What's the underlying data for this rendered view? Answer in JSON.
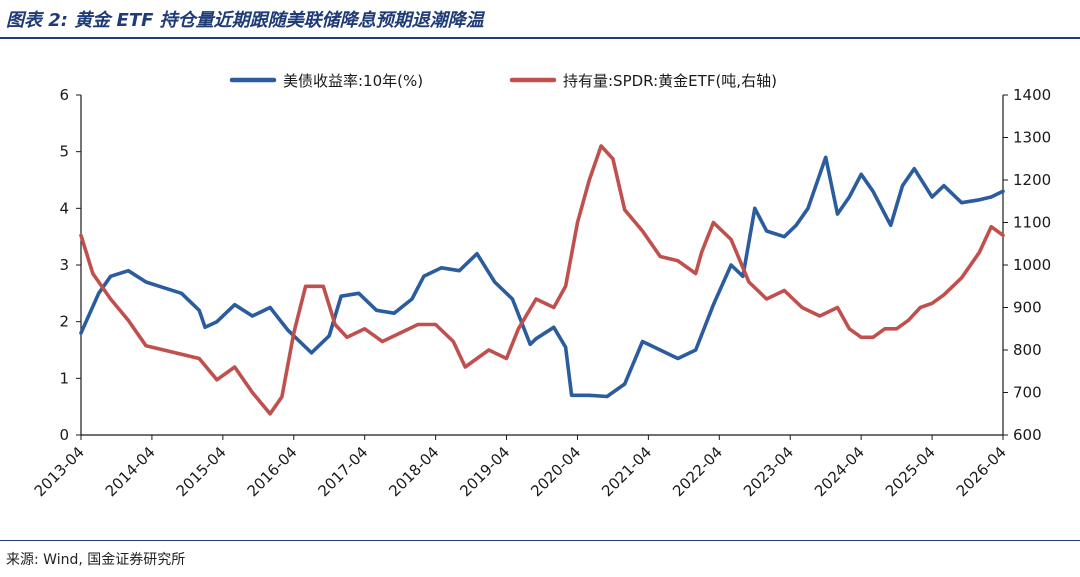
{
  "title": "图表 2: 黄金 ETF 持仓量近期跟随美联储降息预期退潮降温",
  "source": "来源: Wind, 国金证券研究所",
  "colors": {
    "title": "#1f3c78",
    "series_left": "#2b5c9e",
    "series_right": "#c0504d"
  },
  "chart_data": {
    "type": "line",
    "legend_position": "top-center",
    "grid": false,
    "x_ticks": [
      "2013-04",
      "2014-04",
      "2015-04",
      "2016-04",
      "2017-04",
      "2018-04",
      "2019-04",
      "2020-04",
      "2021-04",
      "2022-04",
      "2023-04",
      "2024-04",
      "2025-04",
      "2026-04"
    ],
    "y_left": {
      "ticks": [
        "0",
        "1",
        "2",
        "3",
        "4",
        "5",
        "6"
      ],
      "range": [
        0,
        6
      ]
    },
    "y_right": {
      "ticks": [
        "600",
        "700",
        "800",
        "900",
        "1000",
        "1100",
        "1200",
        "1300",
        "1400"
      ],
      "range": [
        600,
        1400
      ]
    },
    "series": [
      {
        "name": "美债收益率:10年(%)",
        "axis": "left",
        "color": "#2b5c9e",
        "x": [
          "2013-04",
          "2013-07",
          "2013-09",
          "2013-12",
          "2014-03",
          "2014-06",
          "2014-09",
          "2014-12",
          "2015-01",
          "2015-03",
          "2015-06",
          "2015-09",
          "2015-12",
          "2016-03",
          "2016-07",
          "2016-10",
          "2016-12",
          "2017-03",
          "2017-06",
          "2017-09",
          "2017-12",
          "2018-02",
          "2018-05",
          "2018-08",
          "2018-11",
          "2019-02",
          "2019-05",
          "2019-08",
          "2019-09",
          "2019-12",
          "2020-02",
          "2020-03",
          "2020-06",
          "2020-09",
          "2020-12",
          "2021-03",
          "2021-06",
          "2021-09",
          "2021-12",
          "2022-03",
          "2022-06",
          "2022-08",
          "2022-10",
          "2022-12",
          "2023-03",
          "2023-05",
          "2023-07",
          "2023-10",
          "2023-12",
          "2024-02",
          "2024-04",
          "2024-06",
          "2024-08",
          "2024-09",
          "2024-11",
          "2025-01",
          "2025-04",
          "2025-06",
          "2025-09",
          "2025-12",
          "2026-02",
          "2026-04"
        ],
        "values": [
          1.8,
          2.5,
          2.8,
          2.9,
          2.7,
          2.6,
          2.5,
          2.2,
          1.9,
          2.0,
          2.3,
          2.1,
          2.25,
          1.85,
          1.45,
          1.75,
          2.45,
          2.5,
          2.2,
          2.15,
          2.4,
          2.8,
          2.95,
          2.9,
          3.2,
          2.7,
          2.4,
          1.6,
          1.7,
          1.9,
          1.55,
          0.7,
          0.7,
          0.68,
          0.9,
          1.65,
          1.5,
          1.35,
          1.5,
          2.3,
          3.0,
          2.8,
          4.0,
          3.6,
          3.5,
          3.7,
          4.0,
          4.9,
          3.9,
          4.2,
          4.6,
          4.3,
          3.9,
          3.7,
          4.4,
          4.7,
          4.2,
          4.4,
          4.1,
          4.15,
          4.2,
          4.3
        ]
      },
      {
        "name": "持有量:SPDR:黄金ETF(吨,右轴)",
        "axis": "right",
        "color": "#c0504d",
        "x": [
          "2013-04",
          "2013-06",
          "2013-09",
          "2013-12",
          "2014-03",
          "2014-06",
          "2014-09",
          "2014-12",
          "2015-03",
          "2015-06",
          "2015-09",
          "2015-12",
          "2016-02",
          "2016-04",
          "2016-06",
          "2016-09",
          "2016-11",
          "2017-01",
          "2017-04",
          "2017-07",
          "2017-10",
          "2018-01",
          "2018-04",
          "2018-07",
          "2018-09",
          "2019-01",
          "2019-04",
          "2019-06",
          "2019-09",
          "2019-12",
          "2020-02",
          "2020-04",
          "2020-06",
          "2020-08",
          "2020-10",
          "2020-12",
          "2021-03",
          "2021-06",
          "2021-09",
          "2021-12",
          "2022-01",
          "2022-03",
          "2022-06",
          "2022-09",
          "2022-12",
          "2023-03",
          "2023-06",
          "2023-09",
          "2023-12",
          "2024-02",
          "2024-04",
          "2024-06",
          "2024-08",
          "2024-10",
          "2024-12",
          "2025-02",
          "2025-04",
          "2025-06",
          "2025-09",
          "2025-12",
          "2026-02",
          "2026-04"
        ],
        "values": [
          1070,
          980,
          920,
          870,
          810,
          800,
          790,
          780,
          730,
          760,
          700,
          650,
          690,
          840,
          950,
          950,
          860,
          830,
          850,
          820,
          840,
          860,
          860,
          820,
          760,
          800,
          780,
          850,
          920,
          900,
          950,
          1100,
          1200,
          1280,
          1250,
          1130,
          1080,
          1020,
          1010,
          980,
          1030,
          1100,
          1060,
          960,
          920,
          940,
          900,
          880,
          900,
          850,
          830,
          830,
          850,
          850,
          870,
          900,
          910,
          930,
          970,
          1030,
          1090,
          1070
        ]
      }
    ]
  }
}
